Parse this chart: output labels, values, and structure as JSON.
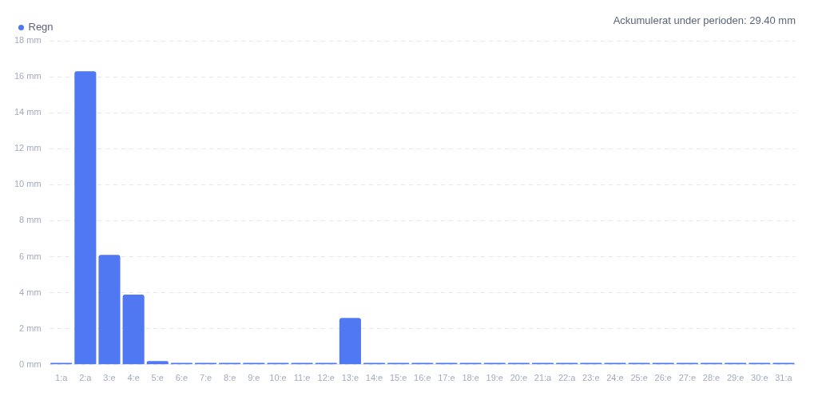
{
  "chart_data": {
    "type": "bar",
    "categories": [
      "1:a",
      "2:a",
      "3:e",
      "4:e",
      "5:e",
      "6:e",
      "7:e",
      "8:e",
      "9:e",
      "10:e",
      "11:e",
      "12:e",
      "13:e",
      "14:e",
      "15:e",
      "16:e",
      "17:e",
      "18:e",
      "19:e",
      "20:e",
      "21:a",
      "22:a",
      "23:e",
      "24:e",
      "25:e",
      "26:e",
      "27:e",
      "28:e",
      "29:e",
      "30:e",
      "31:a"
    ],
    "series": [
      {
        "name": "Regn",
        "color": "#4f78f2",
        "values": [
          0.1,
          16.3,
          6.1,
          3.9,
          0.2,
          0.1,
          0.1,
          0.1,
          0.1,
          0.1,
          0.1,
          0.1,
          2.6,
          0.1,
          0.1,
          0.1,
          0.1,
          0.1,
          0.1,
          0.1,
          0.1,
          0.1,
          0.1,
          0.1,
          0.1,
          0.1,
          0.1,
          0.1,
          0.1,
          0.1,
          0.1
        ]
      }
    ],
    "ylim": [
      0,
      18
    ],
    "yticks": [
      {
        "value": 0,
        "label": "0 mm"
      },
      {
        "value": 2,
        "label": "2 mm"
      },
      {
        "value": 4,
        "label": "4 mm"
      },
      {
        "value": 6,
        "label": "6 mm"
      },
      {
        "value": 8,
        "label": "8 mm"
      },
      {
        "value": 10,
        "label": "10 mm"
      },
      {
        "value": 12,
        "label": "12 mm"
      },
      {
        "value": 14,
        "label": "14 mm"
      },
      {
        "value": 16,
        "label": "16 mm"
      },
      {
        "value": 18,
        "label": "18 mm"
      }
    ],
    "grid": "y",
    "legend": "top left",
    "annotations": [
      "Ackumulerat under perioden: 29.40 mm"
    ]
  }
}
